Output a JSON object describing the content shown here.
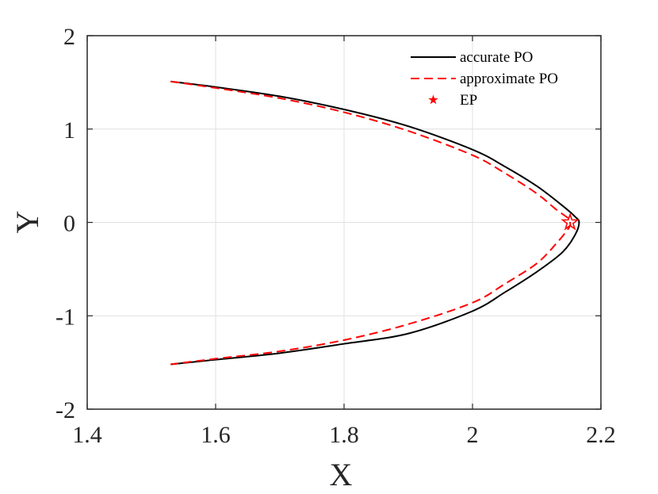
{
  "chart_data": {
    "type": "line",
    "xlabel": "X",
    "ylabel": "Y",
    "xlim": [
      1.4,
      2.2
    ],
    "ylim": [
      -2,
      2
    ],
    "xticks": [
      1.4,
      1.6,
      1.8,
      2.0,
      2.2
    ],
    "xtick_labels": [
      "1.4",
      "1.6",
      "1.8",
      "2",
      "2.2"
    ],
    "yticks": [
      -2,
      -1,
      0,
      1,
      2
    ],
    "ytick_labels": [
      "-2",
      "-1",
      "0",
      "1",
      "2"
    ],
    "grid": true,
    "legend_position": "top-right",
    "series": [
      {
        "name": "accurate PO",
        "color": "#000000",
        "style": "solid",
        "x": [
          1.53,
          1.6,
          1.7,
          1.8,
          1.9,
          2.0,
          2.05,
          2.1,
          2.14,
          2.16,
          2.166,
          2.16,
          2.14,
          2.1,
          2.05,
          2.0,
          1.9,
          1.8,
          1.7,
          1.6,
          1.53
        ],
        "y": [
          1.51,
          1.45,
          1.35,
          1.21,
          1.03,
          0.78,
          0.6,
          0.39,
          0.18,
          0.06,
          0.0,
          -0.13,
          -0.32,
          -0.53,
          -0.75,
          -0.95,
          -1.19,
          -1.3,
          -1.4,
          -1.47,
          -1.52
        ]
      },
      {
        "name": "approximate PO",
        "color": "#ff0000",
        "style": "dashed",
        "x": [
          1.53,
          1.6,
          1.7,
          1.8,
          1.9,
          2.0,
          2.05,
          2.1,
          2.13,
          2.15,
          2.152,
          2.15,
          2.13,
          2.1,
          2.05,
          2.0,
          1.9,
          1.8,
          1.7,
          1.6,
          1.53
        ],
        "y": [
          1.51,
          1.44,
          1.33,
          1.18,
          0.98,
          0.72,
          0.53,
          0.31,
          0.14,
          0.04,
          0.0,
          -0.06,
          -0.23,
          -0.44,
          -0.66,
          -0.86,
          -1.09,
          -1.26,
          -1.38,
          -1.46,
          -1.52
        ]
      },
      {
        "name": "EP",
        "color": "#ff0000",
        "marker": "star",
        "x": [
          2.152
        ],
        "y": [
          0.0
        ]
      }
    ]
  }
}
